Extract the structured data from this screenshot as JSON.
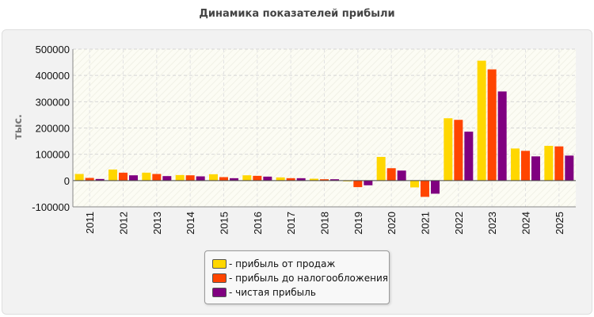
{
  "title": "Динамика показателей прибыли",
  "chart_data": {
    "type": "bar",
    "title": "Динамика показателей прибыли",
    "ylabel": "тыс.",
    "xlabel": "",
    "ylim": [
      -100000,
      500000
    ],
    "yticks": [
      "500000",
      "400000",
      "300000",
      "200000",
      "100000",
      "0",
      "-100000"
    ],
    "ytick_values": [
      500000,
      400000,
      300000,
      200000,
      100000,
      0,
      -100000
    ],
    "categories": [
      "2011",
      "2012",
      "2013",
      "2014",
      "2015",
      "2016",
      "2017",
      "2018",
      "2019",
      "2020",
      "2021",
      "2022",
      "2023",
      "2024",
      "2025"
    ],
    "grid": true,
    "legend_position": "bottom-center",
    "series": [
      {
        "name": "- прибыль от продаж",
        "color": "#ffd700",
        "values": [
          25000,
          42000,
          30000,
          21000,
          24000,
          20000,
          12000,
          7000,
          -2000,
          90000,
          -26000,
          237000,
          456000,
          122000,
          132000
        ]
      },
      {
        "name": "- прибыль до налогообложения",
        "color": "#ff4500",
        "values": [
          10000,
          30000,
          25000,
          20000,
          13000,
          18000,
          9000,
          5000,
          -25000,
          47000,
          -62000,
          231000,
          423000,
          113000,
          130000
        ]
      },
      {
        "name": "- чистая прибыль",
        "color": "#800080",
        "values": [
          6000,
          20000,
          17000,
          16000,
          9000,
          15000,
          9000,
          5000,
          -18000,
          38000,
          -50000,
          186000,
          339000,
          92000,
          95000
        ]
      }
    ]
  }
}
